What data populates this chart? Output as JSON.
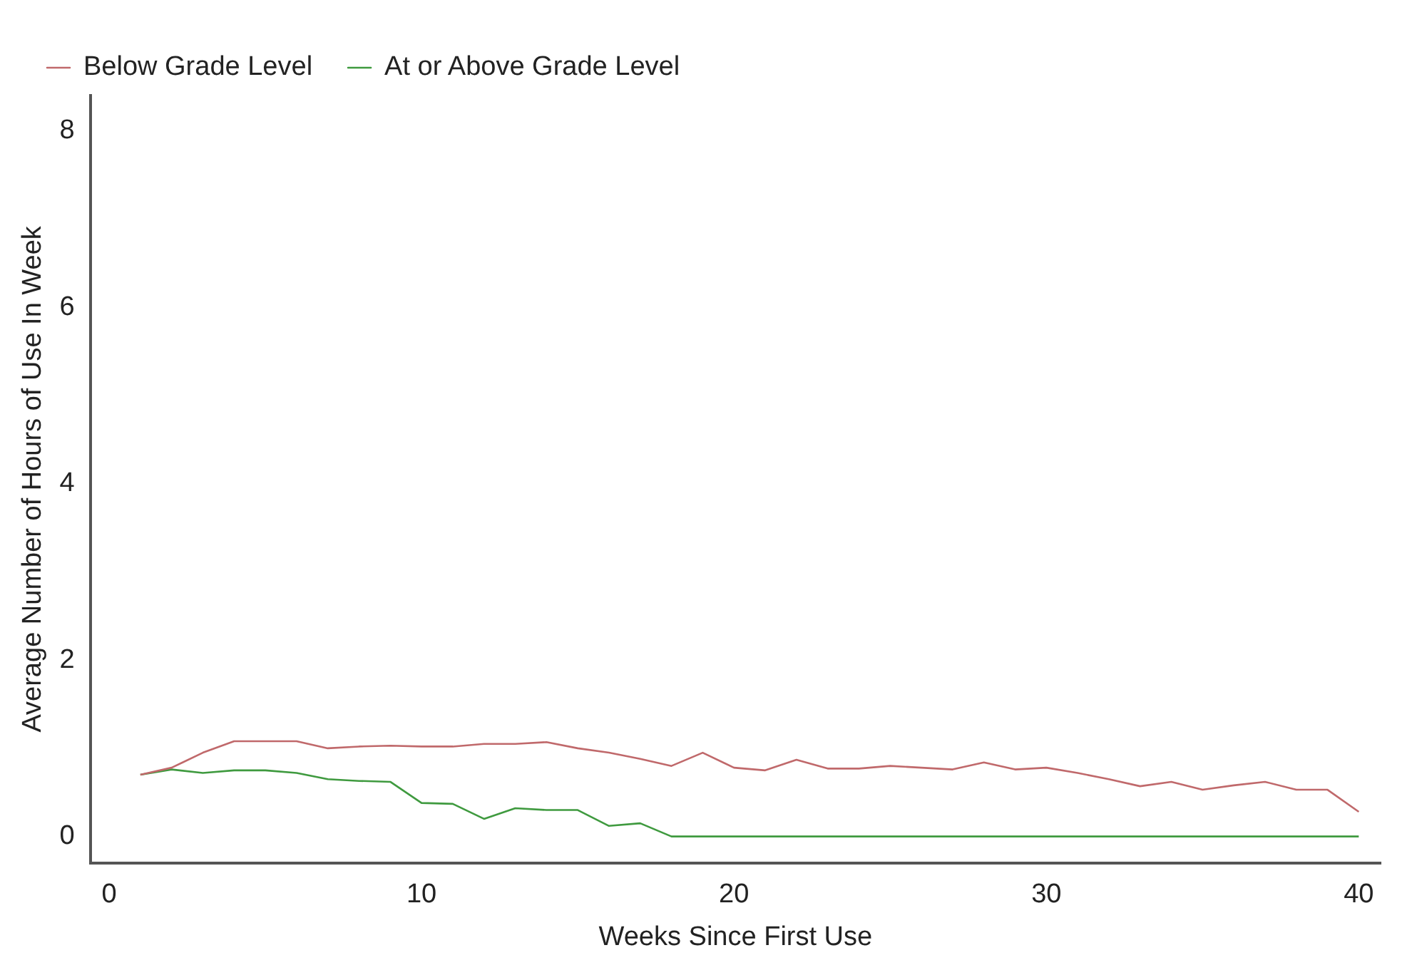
{
  "chart_data": {
    "type": "line",
    "xlabel": "Weeks Since First Use",
    "ylabel": "Average Number of Hours of Use In Week",
    "x": [
      1,
      2,
      3,
      4,
      5,
      6,
      7,
      8,
      9,
      10,
      11,
      12,
      13,
      14,
      15,
      16,
      17,
      18,
      19,
      20,
      21,
      22,
      23,
      24,
      25,
      26,
      27,
      28,
      29,
      30,
      31,
      32,
      33,
      34,
      35,
      36,
      37,
      38,
      39,
      40
    ],
    "series": [
      {
        "name": "Below Grade Level",
        "color": "#c0696b",
        "values": [
          0.7,
          0.78,
          0.95,
          1.08,
          1.08,
          1.08,
          1.0,
          1.02,
          1.03,
          1.02,
          1.02,
          1.05,
          1.05,
          1.07,
          1.0,
          0.95,
          0.88,
          0.8,
          0.95,
          0.78,
          0.75,
          0.87,
          0.77,
          0.77,
          0.8,
          0.78,
          0.76,
          0.84,
          0.76,
          0.78,
          0.72,
          0.65,
          0.57,
          0.62,
          0.53,
          0.58,
          0.62,
          0.53,
          0.53,
          0.28
        ]
      },
      {
        "name": "At or Above Grade Level",
        "color": "#3f9a3f",
        "values": [
          0.7,
          0.76,
          0.72,
          0.75,
          0.75,
          0.72,
          0.65,
          0.63,
          0.62,
          0.38,
          0.37,
          0.2,
          0.32,
          0.3,
          0.3,
          0.12,
          0.15,
          0,
          0,
          0,
          0,
          0,
          0,
          0,
          0,
          0,
          0,
          0,
          0,
          0,
          0,
          0,
          0,
          0,
          0,
          0,
          0,
          0,
          0,
          0
        ]
      }
    ],
    "xlim": [
      -0.6,
      40.7
    ],
    "xticks": [
      0,
      10,
      20,
      30,
      40
    ],
    "ylim": [
      -0.3,
      8.4
    ],
    "yticks": [
      0,
      2,
      4,
      6,
      8
    ],
    "grid": false,
    "legend": "top left",
    "marker": "none",
    "line_style": "solid"
  }
}
